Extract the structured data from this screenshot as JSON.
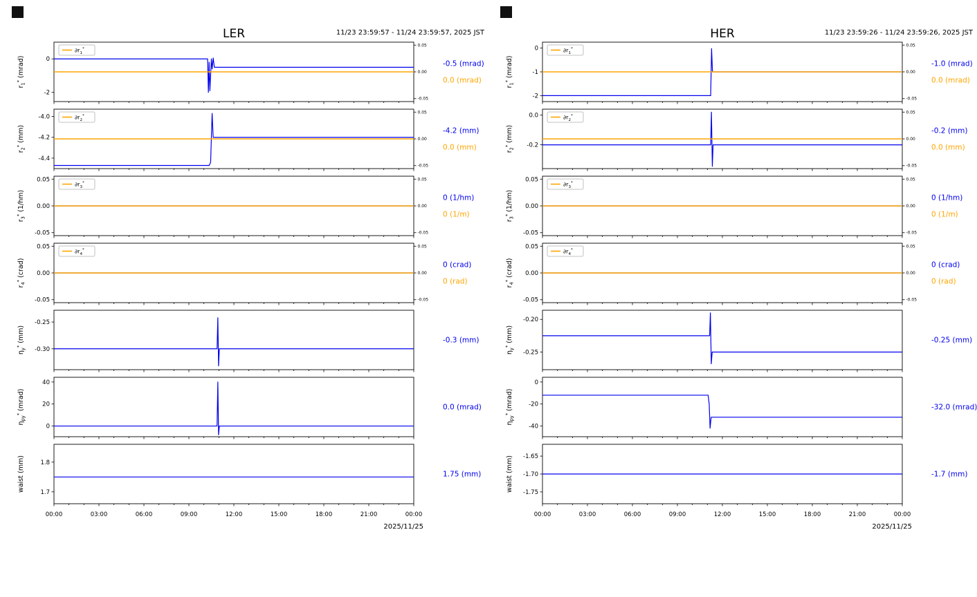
{
  "chart_data": {
    "type": "line",
    "colors": {
      "blue": "#0000ee",
      "orange": "#ffa500"
    },
    "x_axis": {
      "range_hours": [
        0,
        24
      ],
      "major_tick_hours": [
        0,
        3,
        6,
        9,
        12,
        15,
        18,
        21,
        24
      ],
      "tick_labels": [
        "00:00",
        "03:00",
        "06:00",
        "09:00",
        "12:00",
        "15:00",
        "18:00",
        "21:00",
        "00:00"
      ],
      "date_label": "2025/11/25"
    },
    "right_axis_ylim": [
      -0.0555,
      0.0555
    ],
    "right_axis_ticks": [
      [
        0.05,
        "0.05"
      ],
      [
        0,
        "0.00"
      ],
      [
        -0.05,
        "-0.05"
      ]
    ],
    "columns": [
      {
        "title": "LER",
        "time_range": "11/23 23:59:57 - 11/24 23:59:57, 2025 JST",
        "plots": [
          {
            "ylabel": "r_1^* (mrad)",
            "legend": "∂r_1^*",
            "ylim": [
              -2.55,
              1.0
            ],
            "yticks": [
              [
                0,
                "0"
              ],
              [
                -2,
                "-2"
              ]
            ],
            "right_axis": true,
            "annotations": [
              {
                "text": "-0.5 (mrad)",
                "color": "blue"
              },
              {
                "text": "0.0 (mrad)",
                "color": "orange"
              }
            ],
            "series": [
              {
                "name": "r_1^*",
                "color": "blue",
                "axis": "left",
                "x": [
                  0,
                  10.25,
                  10.3,
                  10.35,
                  10.4,
                  10.5,
                  10.55,
                  10.62,
                  10.7,
                  24
                ],
                "y": [
                  0,
                  0,
                  -2,
                  -0.2,
                  -1.9,
                  0,
                  -0.6,
                  0.05,
                  -0.5,
                  -0.5
                ]
              },
              {
                "name": "∂r_1^*",
                "color": "orange",
                "axis": "right",
                "x": [
                  0,
                  24
                ],
                "y": [
                  0,
                  0
                ]
              }
            ]
          },
          {
            "ylabel": "r_2^* (mm)",
            "legend": "∂r_2^*",
            "ylim": [
              -4.5,
              -3.93
            ],
            "yticks": [
              [
                -4.0,
                "-4.0"
              ],
              [
                -4.2,
                "-4.2"
              ],
              [
                -4.4,
                "-4.4"
              ]
            ],
            "right_axis": true,
            "annotations": [
              {
                "text": "-4.2 (mm)",
                "color": "blue"
              },
              {
                "text": "0.0 (mm)",
                "color": "orange"
              }
            ],
            "series": [
              {
                "name": "r_2^*",
                "color": "blue",
                "axis": "left",
                "x": [
                  0,
                  10.35,
                  10.45,
                  10.5,
                  10.55,
                  10.62,
                  24
                ],
                "y": [
                  -4.47,
                  -4.47,
                  -4.44,
                  -4.2,
                  -3.97,
                  -4.2,
                  -4.2
                ]
              },
              {
                "name": "∂r_2^*",
                "color": "orange",
                "axis": "right",
                "x": [
                  0,
                  24
                ],
                "y": [
                  0,
                  0
                ]
              }
            ]
          },
          {
            "ylabel": "r_3^* (1/hm)",
            "legend": "∂r_3^*",
            "ylim": [
              -0.0555,
              0.0555
            ],
            "yticks": [
              [
                0.05,
                "0.05"
              ],
              [
                0,
                "0.00"
              ],
              [
                -0.05,
                "-0.05"
              ]
            ],
            "right_axis": true,
            "annotations": [
              {
                "text": "0 (1/hm)",
                "color": "blue"
              },
              {
                "text": "0 (1/m)",
                "color": "orange"
              }
            ],
            "series": [
              {
                "name": "r_3^*",
                "color": "blue",
                "axis": "left",
                "x": [
                  0,
                  24
                ],
                "y": [
                  0,
                  0
                ]
              },
              {
                "name": "∂r_3^*",
                "color": "orange",
                "axis": "right",
                "x": [
                  0,
                  24
                ],
                "y": [
                  0,
                  0
                ]
              }
            ]
          },
          {
            "ylabel": "r_4^* (crad)",
            "legend": "∂r_4^*",
            "ylim": [
              -0.0555,
              0.0555
            ],
            "yticks": [
              [
                0.05,
                "0.05"
              ],
              [
                0,
                "0.00"
              ],
              [
                -0.05,
                "-0.05"
              ]
            ],
            "right_axis": true,
            "annotations": [
              {
                "text": "0 (crad)",
                "color": "blue"
              },
              {
                "text": "0 (rad)",
                "color": "orange"
              }
            ],
            "series": [
              {
                "name": "r_4^*",
                "color": "blue",
                "axis": "left",
                "x": [
                  0,
                  24
                ],
                "y": [
                  0,
                  0
                ]
              },
              {
                "name": "∂r_4^*",
                "color": "orange",
                "axis": "right",
                "x": [
                  0,
                  24
                ],
                "y": [
                  0,
                  0
                ]
              }
            ]
          },
          {
            "ylabel": "η_y^* (mm)",
            "ylim": [
              -0.339,
              -0.228
            ],
            "yticks": [
              [
                -0.25,
                "-0.25"
              ],
              [
                -0.3,
                "-0.30"
              ]
            ],
            "right_axis": false,
            "annotations": [
              {
                "text": "-0.3 (mm)",
                "color": "blue"
              }
            ],
            "series": [
              {
                "name": "η_y^*",
                "color": "blue",
                "axis": "left",
                "x": [
                  0,
                  10.88,
                  10.93,
                  10.98,
                  11.03,
                  24
                ],
                "y": [
                  -0.3,
                  -0.3,
                  -0.242,
                  -0.332,
                  -0.3,
                  -0.3
                ]
              }
            ]
          },
          {
            "ylabel": "η_{py}^* (mrad)",
            "ylim": [
              -9.7,
              44.3
            ],
            "yticks": [
              [
                40,
                "40"
              ],
              [
                20,
                "20"
              ],
              [
                0,
                "0"
              ]
            ],
            "right_axis": false,
            "annotations": [
              {
                "text": "0.0 (mrad)",
                "color": "blue"
              }
            ],
            "series": [
              {
                "name": "η_py^*",
                "color": "blue",
                "axis": "left",
                "x": [
                  0,
                  10.88,
                  10.93,
                  10.98,
                  11.03,
                  24
                ],
                "y": [
                  0,
                  0,
                  40,
                  -8,
                  0,
                  0
                ]
              }
            ]
          },
          {
            "ylabel": "waist (mm)",
            "ylim": [
              1.66,
              1.86
            ],
            "yticks": [
              [
                1.8,
                "1.8"
              ],
              [
                1.7,
                "1.7"
              ]
            ],
            "right_axis": false,
            "annotations": [
              {
                "text": "1.75 (mm)",
                "color": "blue"
              }
            ],
            "series": [
              {
                "name": "waist",
                "color": "blue",
                "axis": "left",
                "x": [
                  0,
                  24
                ],
                "y": [
                  1.75,
                  1.75
                ]
              }
            ]
          }
        ]
      },
      {
        "title": "HER",
        "time_range": "11/23 23:59:26 - 11/24 23:59:26, 2025 JST",
        "plots": [
          {
            "ylabel": "r_1^* (mrad)",
            "legend": "∂r_1^*",
            "ylim": [
              -2.25,
              0.25
            ],
            "yticks": [
              [
                0,
                "0"
              ],
              [
                -1,
                "-1"
              ],
              [
                -2,
                "-2"
              ]
            ],
            "right_axis": true,
            "annotations": [
              {
                "text": "-1.0 (mrad)",
                "color": "blue"
              },
              {
                "text": "0.0 (mrad)",
                "color": "orange"
              }
            ],
            "series": [
              {
                "name": "r_1^*",
                "color": "blue",
                "axis": "left",
                "x": [
                  0,
                  11.22,
                  11.28,
                  11.34,
                  24
                ],
                "y": [
                  -2,
                  -2,
                  -0.02,
                  -1,
                  -1
                ]
              },
              {
                "name": "∂r_1^*",
                "color": "orange",
                "axis": "right",
                "x": [
                  0,
                  24
                ],
                "y": [
                  0,
                  0
                ]
              }
            ]
          },
          {
            "ylabel": "r_2^* (mm)",
            "legend": "∂r_2^*",
            "ylim": [
              -0.36,
              0.04
            ],
            "yticks": [
              [
                0.0,
                "0.0"
              ],
              [
                -0.2,
                "-0.2"
              ]
            ],
            "right_axis": true,
            "annotations": [
              {
                "text": "-0.2 (mm)",
                "color": "blue"
              },
              {
                "text": "0.0 (mm)",
                "color": "orange"
              }
            ],
            "series": [
              {
                "name": "r_2^*",
                "color": "blue",
                "axis": "left",
                "x": [
                  0,
                  11.22,
                  11.27,
                  11.33,
                  11.38,
                  24
                ],
                "y": [
                  -0.2,
                  -0.2,
                  0.02,
                  -0.345,
                  -0.2,
                  -0.2
                ]
              },
              {
                "name": "∂r_2^*",
                "color": "orange",
                "axis": "right",
                "x": [
                  0,
                  24
                ],
                "y": [
                  0,
                  0
                ]
              }
            ]
          },
          {
            "ylabel": "r_3^* (1/hm)",
            "legend": "∂r_3^*",
            "ylim": [
              -0.0555,
              0.0555
            ],
            "yticks": [
              [
                0.05,
                "0.05"
              ],
              [
                0,
                "0.00"
              ],
              [
                -0.05,
                "-0.05"
              ]
            ],
            "right_axis": true,
            "annotations": [
              {
                "text": "0 (1/hm)",
                "color": "blue"
              },
              {
                "text": "0 (1/m)",
                "color": "orange"
              }
            ],
            "series": [
              {
                "name": "r_3^*",
                "color": "blue",
                "axis": "left",
                "x": [
                  0,
                  24
                ],
                "y": [
                  0,
                  0
                ]
              },
              {
                "name": "∂r_3^*",
                "color": "orange",
                "axis": "right",
                "x": [
                  0,
                  24
                ],
                "y": [
                  0,
                  0
                ]
              }
            ]
          },
          {
            "ylabel": "r_4^* (crad)",
            "legend": "∂r_4^*",
            "ylim": [
              -0.0555,
              0.0555
            ],
            "yticks": [
              [
                0.05,
                "0.05"
              ],
              [
                0,
                "0.00"
              ],
              [
                -0.05,
                "-0.05"
              ]
            ],
            "right_axis": true,
            "annotations": [
              {
                "text": "0 (crad)",
                "color": "blue"
              },
              {
                "text": "0 (rad)",
                "color": "orange"
              }
            ],
            "series": [
              {
                "name": "r_4^*",
                "color": "blue",
                "axis": "left",
                "x": [
                  0,
                  24
                ],
                "y": [
                  0,
                  0
                ]
              },
              {
                "name": "∂r_4^*",
                "color": "orange",
                "axis": "right",
                "x": [
                  0,
                  24
                ],
                "y": [
                  0,
                  0
                ]
              }
            ]
          },
          {
            "ylabel": "η_y^* (mm)",
            "ylim": [
              -0.277,
              -0.186
            ],
            "yticks": [
              [
                -0.2,
                "-0.20"
              ],
              [
                -0.25,
                "-0.25"
              ]
            ],
            "right_axis": false,
            "annotations": [
              {
                "text": "-0.25 (mm)",
                "color": "blue"
              }
            ],
            "series": [
              {
                "name": "η_y^*",
                "color": "blue",
                "axis": "left",
                "x": [
                  0,
                  11.15,
                  11.2,
                  11.26,
                  11.32,
                  24
                ],
                "y": [
                  -0.225,
                  -0.225,
                  -0.19,
                  -0.268,
                  -0.25,
                  -0.25
                ]
              }
            ]
          },
          {
            "ylabel": "η_{py}^* (mrad)",
            "ylim": [
              -49.7,
              4.3
            ],
            "yticks": [
              [
                0,
                "0"
              ],
              [
                -20,
                "-20"
              ],
              [
                -40,
                "-40"
              ]
            ],
            "right_axis": false,
            "annotations": [
              {
                "text": "-32.0 (mrad)",
                "color": "blue"
              }
            ],
            "series": [
              {
                "name": "η_py^*",
                "color": "blue",
                "axis": "left",
                "x": [
                  0,
                  11.05,
                  11.12,
                  11.18,
                  11.25,
                  24
                ],
                "y": [
                  -12,
                  -12,
                  -20,
                  -42,
                  -32,
                  -32
                ]
              }
            ]
          },
          {
            "ylabel": "waist (mm)",
            "ylim": [
              -1.783,
              -1.617
            ],
            "yticks": [
              [
                -1.65,
                "-1.65"
              ],
              [
                -1.7,
                "-1.70"
              ],
              [
                -1.75,
                "-1.75"
              ]
            ],
            "right_axis": false,
            "annotations": [
              {
                "text": "-1.7 (mm)",
                "color": "blue"
              }
            ],
            "series": [
              {
                "name": "waist",
                "color": "blue",
                "axis": "left",
                "x": [
                  0,
                  24
                ],
                "y": [
                  -1.7,
                  -1.7
                ]
              }
            ]
          }
        ]
      }
    ]
  }
}
